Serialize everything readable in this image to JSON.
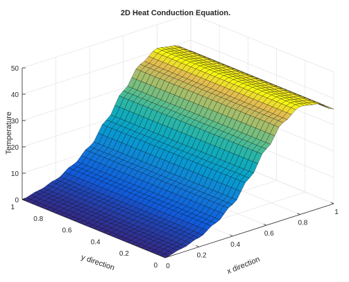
{
  "chart_data": {
    "type": "surface",
    "title": "2D Heat Conduction Equation.",
    "xlabel": "x direction",
    "ylabel": "y direction",
    "zlabel": "Temperature",
    "xlim": [
      0,
      1
    ],
    "ylim": [
      0,
      1
    ],
    "zlim": [
      0,
      50
    ],
    "x_ticks": [
      "0",
      "0.2",
      "0.4",
      "0.6",
      "0.8",
      "1"
    ],
    "y_ticks": [
      "0",
      "0.2",
      "0.4",
      "0.6",
      "0.8",
      "1"
    ],
    "z_ticks": [
      "0",
      "10",
      "20",
      "30",
      "40",
      "50"
    ],
    "grid": true,
    "colormap": "parula",
    "mesh_edge_color": "#000000",
    "surface_profile": {
      "description_units": "Temperature vs x (approximately constant in y)",
      "x": [
        0,
        0.1,
        0.2,
        0.3,
        0.4,
        0.5,
        0.6,
        0.7,
        0.8,
        0.9,
        1.0
      ],
      "z": [
        0,
        1.5,
        3.5,
        7,
        12,
        20,
        29,
        37,
        41,
        40,
        36
      ]
    }
  }
}
